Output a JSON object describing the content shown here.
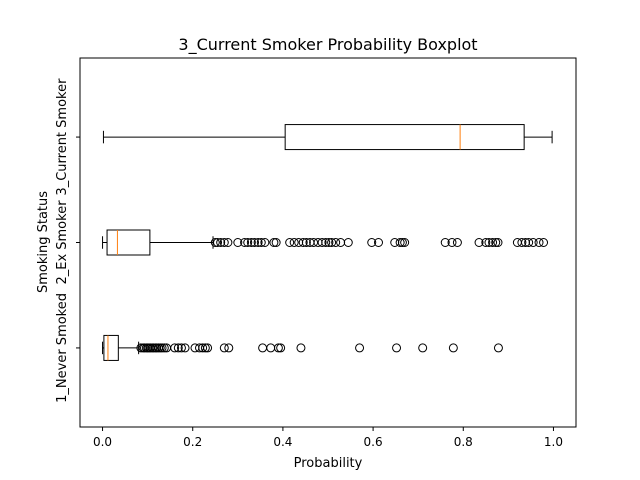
{
  "chart_data": {
    "type": "box",
    "orientation": "horizontal",
    "title": "3_Current Smoker Probability Boxplot",
    "xlabel": "Probability",
    "ylabel": "Smoking Status",
    "xlim": [
      -0.05,
      1.05
    ],
    "xticks": [
      0.0,
      0.2,
      0.4,
      0.6,
      0.8,
      1.0
    ],
    "xtick_labels": [
      "0.0",
      "0.2",
      "0.4",
      "0.6",
      "0.8",
      "1.0"
    ],
    "grid": false,
    "categories": [
      "1_Never Smoked",
      "2_Ex Smoker",
      "3_Current Smoker"
    ],
    "boxes": [
      {
        "category": "1_Never Smoked",
        "whisker_low": 0.0,
        "q1": 0.003,
        "median": 0.012,
        "q3": 0.035,
        "whisker_high": 0.08,
        "outliers": [
          0.085,
          0.09,
          0.093,
          0.097,
          0.1,
          0.103,
          0.106,
          0.11,
          0.113,
          0.117,
          0.12,
          0.124,
          0.128,
          0.132,
          0.137,
          0.142,
          0.16,
          0.168,
          0.175,
          0.183,
          0.205,
          0.215,
          0.222,
          0.228,
          0.233,
          0.27,
          0.28,
          0.355,
          0.373,
          0.39,
          0.395,
          0.44,
          0.57,
          0.652,
          0.71,
          0.778,
          0.878
        ]
      },
      {
        "category": "2_Ex Smoker",
        "whisker_low": 0.0,
        "q1": 0.01,
        "median": 0.033,
        "q3": 0.105,
        "whisker_high": 0.245,
        "outliers": [
          0.25,
          0.255,
          0.262,
          0.27,
          0.278,
          0.3,
          0.315,
          0.322,
          0.33,
          0.337,
          0.345,
          0.352,
          0.36,
          0.38,
          0.385,
          0.415,
          0.425,
          0.435,
          0.445,
          0.452,
          0.46,
          0.468,
          0.478,
          0.487,
          0.495,
          0.502,
          0.508,
          0.517,
          0.528,
          0.545,
          0.597,
          0.612,
          0.648,
          0.66,
          0.665,
          0.67,
          0.76,
          0.775,
          0.787,
          0.835,
          0.85,
          0.857,
          0.865,
          0.872,
          0.877,
          0.92,
          0.93,
          0.938,
          0.945,
          0.955,
          0.968,
          0.978
        ]
      },
      {
        "category": "3_Current Smoker",
        "whisker_low": 0.002,
        "q1": 0.405,
        "median": 0.793,
        "q3": 0.935,
        "whisker_high": 0.997,
        "outliers": []
      }
    ],
    "colors": {
      "box": "#000000",
      "median": "#ff7f0e",
      "outlier": "#000000",
      "background": "#ffffff"
    }
  }
}
